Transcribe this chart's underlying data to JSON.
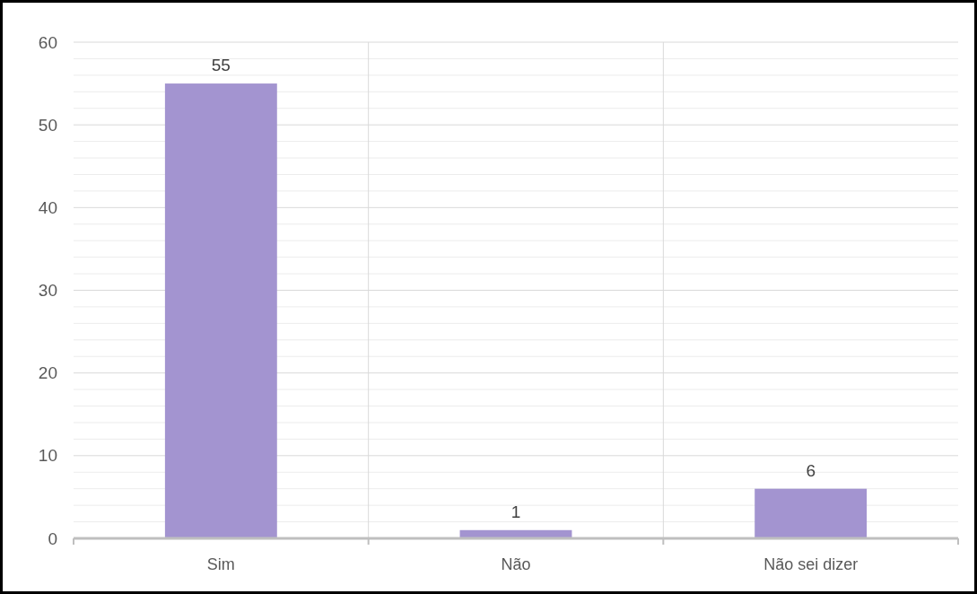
{
  "chart_data": {
    "type": "bar",
    "categories": [
      "Sim",
      "Não",
      "Não sei dizer"
    ],
    "values": [
      55,
      1,
      6
    ],
    "color": "#a394d0",
    "ylim": [
      0,
      60
    ],
    "yticks": [
      0,
      {
        "value": 2,
        "label": null
      },
      {
        "value": 4,
        "label": null
      },
      {
        "value": 6,
        "label": null
      },
      {
        "value": 8,
        "label": null
      },
      10,
      {
        "value": 12,
        "label": null
      },
      {
        "value": 14,
        "label": null
      },
      {
        "value": 16,
        "label": null
      },
      {
        "value": 18,
        "label": null
      },
      20,
      {
        "value": 22,
        "label": null
      },
      {
        "value": 24,
        "label": null
      },
      {
        "value": 26,
        "label": null
      },
      {
        "value": 28,
        "label": null
      },
      30,
      {
        "value": 32,
        "label": null
      },
      {
        "value": 34,
        "label": null
      },
      {
        "value": 36,
        "label": null
      },
      {
        "value": 38,
        "label": null
      },
      40,
      {
        "value": 42,
        "label": null
      },
      {
        "value": 44,
        "label": null
      },
      {
        "value": 46,
        "label": null
      },
      {
        "value": 48,
        "label": null
      },
      50,
      {
        "value": 52,
        "label": null
      },
      {
        "value": 54,
        "label": null
      },
      {
        "value": 56,
        "label": null
      },
      {
        "value": 58,
        "label": null
      },
      60
    ],
    "grid": true,
    "data_labels": true
  }
}
